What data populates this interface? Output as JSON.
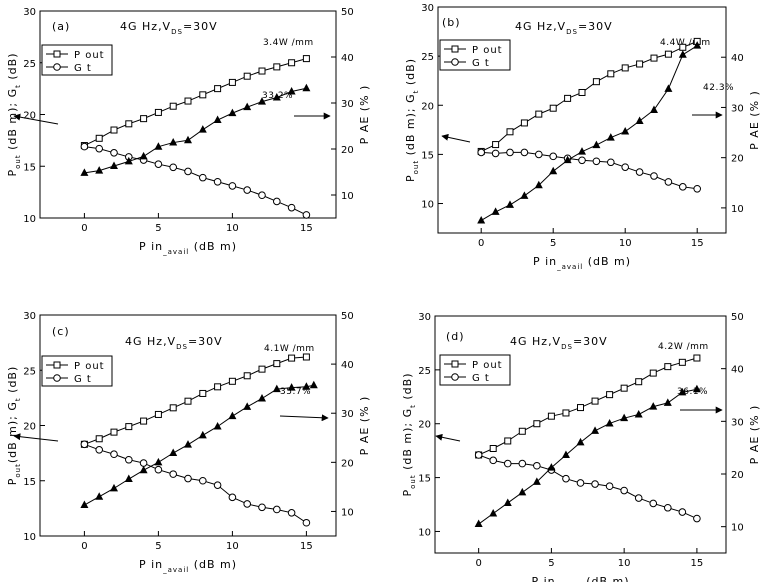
{
  "chart_data": [
    {
      "type": "line",
      "panel_label": "(a)",
      "condition": {
        "main": "4G Hz,V",
        "sub": "DS",
        "tail": "=30V"
      },
      "xlabel": {
        "main": "P in",
        "sub": "_avail",
        "tail": " (dB m)"
      },
      "ylabel": {
        "main": "P",
        "sub": "out",
        "tail": " (dB m); G",
        "sub2": "t",
        "tail2": " (dB)"
      },
      "y2label": "P AE  (% )",
      "xlim": [
        -3,
        17
      ],
      "ylim": [
        10,
        30
      ],
      "y2lim": [
        5,
        50
      ],
      "xticks": [
        0,
        5,
        10,
        15
      ],
      "yticks": [
        10,
        15,
        20,
        25,
        30
      ],
      "y2ticks": [
        10,
        20,
        30,
        40,
        50
      ],
      "legend": {
        "position": "top-left",
        "entries": [
          "P out",
          "G t"
        ]
      },
      "series": [
        {
          "name": "P out",
          "axis": "left",
          "marker": "square-open",
          "x": [
            0,
            1,
            2,
            3,
            4,
            5,
            6,
            7,
            8,
            9,
            10,
            11,
            12,
            13,
            14,
            15
          ],
          "y": [
            17.0,
            17.7,
            18.5,
            19.1,
            19.6,
            20.2,
            20.8,
            21.3,
            21.9,
            22.5,
            23.1,
            23.7,
            24.2,
            24.6,
            25.0,
            25.4
          ]
        },
        {
          "name": "G t",
          "axis": "left",
          "marker": "circle-open",
          "x": [
            0,
            1,
            2,
            3,
            4,
            5,
            6,
            7,
            8,
            9,
            10,
            11,
            12,
            13,
            14,
            15
          ],
          "y": [
            16.9,
            16.7,
            16.3,
            15.9,
            15.6,
            15.2,
            14.9,
            14.5,
            13.9,
            13.5,
            13.1,
            12.7,
            12.2,
            11.6,
            11.0,
            10.3
          ]
        },
        {
          "name": "PAE",
          "axis": "right",
          "marker": "triangle-filled",
          "x": [
            0,
            1,
            2,
            3,
            4,
            5,
            6,
            7,
            8,
            9,
            10,
            11,
            12,
            13,
            14,
            15
          ],
          "y": [
            14.8,
            15.3,
            16.3,
            17.3,
            18.4,
            20.5,
            21.4,
            21.9,
            24.2,
            26.3,
            27.8,
            29.1,
            30.3,
            31.2,
            32.5,
            33.2
          ]
        }
      ],
      "annotations": [
        {
          "text": "3.4W /mm"
        },
        {
          "text": "33.2%"
        }
      ]
    },
    {
      "type": "line",
      "panel_label": "(b)",
      "condition": {
        "main": "4G Hz,V",
        "sub": "DS",
        "tail": "=30V"
      },
      "xlabel": {
        "main": "P in",
        "sub": "_avail",
        "tail": " (dB m)"
      },
      "ylabel": {
        "main": "P",
        "sub": "out",
        "tail": " (dB m); G",
        "sub2": "t",
        "tail2": " (dB)"
      },
      "y2label": "P AE  (% )",
      "xlim": [
        -3,
        17
      ],
      "ylim": [
        7,
        30
      ],
      "y2lim": [
        5,
        50
      ],
      "xticks": [
        0,
        5,
        10,
        15
      ],
      "yticks": [
        10,
        15,
        20,
        25,
        30
      ],
      "y2ticks": [
        10,
        20,
        30,
        40
      ],
      "legend": {
        "position": "top-left",
        "entries": [
          "P out",
          "G t"
        ]
      },
      "series": [
        {
          "name": "P out",
          "axis": "left",
          "marker": "square-open",
          "x": [
            0,
            1,
            2,
            3,
            4,
            5,
            6,
            7,
            8,
            9,
            10,
            11,
            12,
            13,
            14,
            15
          ],
          "y": [
            15.3,
            16.0,
            17.3,
            18.2,
            19.1,
            19.7,
            20.7,
            21.3,
            22.4,
            23.2,
            23.8,
            24.2,
            24.8,
            25.2,
            25.9,
            26.5
          ]
        },
        {
          "name": "G t",
          "axis": "left",
          "marker": "circle-open",
          "x": [
            0,
            1,
            2,
            3,
            4,
            5,
            6,
            7,
            8,
            9,
            10,
            11,
            12,
            13,
            14,
            15
          ],
          "y": [
            15.2,
            15.1,
            15.2,
            15.2,
            15.0,
            14.8,
            14.6,
            14.4,
            14.3,
            14.2,
            13.7,
            13.2,
            12.8,
            12.2,
            11.7,
            11.5
          ]
        },
        {
          "name": "PAE",
          "axis": "right",
          "marker": "triangle-filled",
          "x": [
            0,
            1,
            2,
            3,
            4,
            5,
            6,
            7,
            8,
            9,
            10,
            11,
            12,
            13,
            14,
            15
          ],
          "y": [
            7.5,
            9.2,
            10.6,
            12.4,
            14.5,
            17.3,
            19.5,
            21.2,
            22.5,
            24.0,
            25.2,
            27.3,
            29.5,
            33.7,
            40.5,
            42.3
          ]
        }
      ],
      "annotations": [
        {
          "text": "4.4W /mm"
        },
        {
          "text": "42.3%"
        }
      ]
    },
    {
      "type": "line",
      "panel_label": "(c)",
      "condition": {
        "main": "4G Hz,V",
        "sub": "DS",
        "tail": "=30V"
      },
      "xlabel": {
        "main": "P in",
        "sub": "_avail",
        "tail": " (dB m)"
      },
      "ylabel": {
        "main": "P",
        "sub": "out",
        "tail": "(dB m); G",
        "sub2": "t",
        "tail2": " (dB)"
      },
      "y2label": "P AE  (% )",
      "xlim": [
        -3,
        17
      ],
      "ylim": [
        10,
        30
      ],
      "y2lim": [
        5,
        50
      ],
      "xticks": [
        0,
        5,
        10,
        15
      ],
      "yticks": [
        10,
        15,
        20,
        25,
        30
      ],
      "y2ticks": [
        10,
        20,
        30,
        40,
        50
      ],
      "legend": {
        "position": "top-left",
        "entries": [
          "P out",
          "G t"
        ]
      },
      "series": [
        {
          "name": "P out",
          "axis": "left",
          "marker": "square-open",
          "x": [
            0,
            1,
            2,
            3,
            4,
            5,
            6,
            7,
            8,
            9,
            10,
            11,
            12,
            13,
            14,
            15
          ],
          "y": [
            18.3,
            18.8,
            19.4,
            19.9,
            20.4,
            21.0,
            21.6,
            22.2,
            22.9,
            23.5,
            24.0,
            24.5,
            25.1,
            25.6,
            26.1,
            26.2
          ]
        },
        {
          "name": "G t",
          "axis": "left",
          "marker": "circle-open",
          "x": [
            0,
            1,
            2,
            3,
            4,
            5,
            6,
            7,
            8,
            9,
            10,
            11,
            12,
            13,
            14,
            15
          ],
          "y": [
            18.3,
            17.8,
            17.4,
            16.9,
            16.6,
            16.0,
            15.6,
            15.2,
            15.0,
            14.6,
            13.5,
            12.9,
            12.6,
            12.4,
            12.1,
            11.2
          ]
        },
        {
          "name": "PAE",
          "axis": "right",
          "marker": "triangle-filled",
          "x": [
            0,
            1,
            2,
            3,
            4,
            5,
            6,
            7,
            8,
            9,
            10,
            11,
            12,
            13,
            14,
            15,
            15.5
          ],
          "y": [
            11.3,
            13.0,
            14.7,
            16.6,
            18.4,
            20.0,
            21.9,
            23.6,
            25.5,
            27.3,
            29.4,
            31.3,
            33.0,
            34.9,
            35.2,
            35.4,
            35.7
          ]
        }
      ],
      "annotations": [
        {
          "text": "4.1W /mm"
        },
        {
          "text": "35.7%"
        }
      ]
    },
    {
      "type": "line",
      "panel_label": "(d)",
      "condition": {
        "main": "4G Hz,V",
        "sub": "DS",
        "tail": "=30V"
      },
      "xlabel": {
        "main": "P in",
        "sub": "_avail",
        "tail": " (dB m)"
      },
      "ylabel": {
        "main": "P",
        "sub": "out",
        "tail": " (dB m); G",
        "sub2": "t",
        "tail2": " (dB)"
      },
      "y2label": "P AE  (% )",
      "xlim": [
        -3,
        17
      ],
      "ylim": [
        8,
        30
      ],
      "y2lim": [
        5,
        50
      ],
      "xticks": [
        0,
        5,
        10,
        15
      ],
      "yticks": [
        10,
        15,
        20,
        25,
        30
      ],
      "y2ticks": [
        10,
        20,
        30,
        40,
        50
      ],
      "legend": {
        "position": "top-left",
        "entries": [
          "P out",
          "G t"
        ]
      },
      "series": [
        {
          "name": "P out",
          "axis": "left",
          "marker": "square-open",
          "x": [
            0,
            1,
            2,
            3,
            4,
            5,
            6,
            7,
            8,
            9,
            10,
            11,
            12,
            13,
            14,
            15
          ],
          "y": [
            17.1,
            17.7,
            18.4,
            19.3,
            20.0,
            20.7,
            21.0,
            21.5,
            22.1,
            22.7,
            23.3,
            23.9,
            24.7,
            25.3,
            25.7,
            26.1
          ]
        },
        {
          "name": "G t",
          "axis": "left",
          "marker": "circle-open",
          "x": [
            0,
            1,
            2,
            3,
            4,
            5,
            6,
            7,
            8,
            9,
            10,
            11,
            12,
            13,
            14,
            15
          ],
          "y": [
            17.1,
            16.6,
            16.3,
            16.3,
            16.1,
            15.7,
            14.9,
            14.5,
            14.4,
            14.2,
            13.8,
            13.1,
            12.6,
            12.2,
            11.8,
            11.2
          ]
        },
        {
          "name": "PAE",
          "axis": "right",
          "marker": "triangle-filled",
          "x": [
            0,
            1,
            2,
            3,
            4,
            5,
            6,
            7,
            8,
            9,
            10,
            11,
            12,
            13,
            14,
            15
          ],
          "y": [
            10.5,
            12.5,
            14.5,
            16.5,
            18.5,
            21.2,
            23.6,
            26.0,
            28.2,
            29.6,
            30.6,
            31.3,
            32.8,
            33.5,
            35.5,
            36.1
          ]
        }
      ],
      "annotations": [
        {
          "text": "4.2W /mm"
        },
        {
          "text": "36.1%"
        }
      ]
    }
  ]
}
